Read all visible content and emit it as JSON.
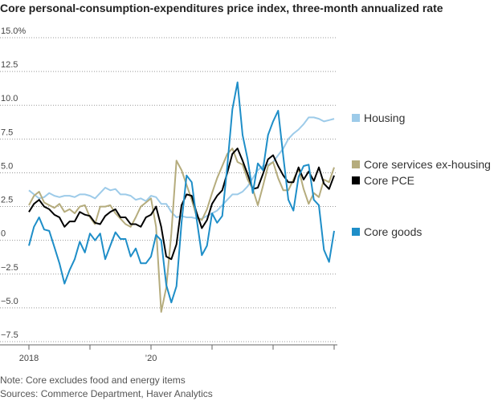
{
  "chart_data": {
    "type": "line",
    "title": "Core personal-consumption-expenditures price index, three-month annualized rate",
    "categories": [
      "2018",
      null,
      null,
      null,
      null,
      null,
      null,
      null,
      null,
      null,
      null,
      null,
      null,
      null,
      null,
      null,
      null,
      null,
      null,
      null,
      null,
      null,
      null,
      null,
      "’20",
      null,
      null,
      null,
      null,
      null,
      null,
      null,
      null,
      null,
      null,
      null,
      null,
      null,
      null,
      null,
      null,
      null,
      null,
      null,
      null,
      null,
      null,
      null,
      null,
      null,
      null,
      null,
      null,
      null,
      null,
      null,
      null,
      null,
      null,
      null,
      null
    ],
    "series": [
      {
        "name": "Housing",
        "color": "#9dcbe9",
        "values": [
          3.7,
          3.4,
          3.1,
          3.2,
          3.5,
          3.3,
          3.2,
          3.3,
          3.3,
          3.2,
          3.4,
          3.4,
          3.3,
          3.1,
          3.5,
          3.9,
          3.7,
          3.8,
          3.4,
          3.4,
          3.3,
          3.0,
          3.1,
          2.9,
          3.3,
          3.2,
          2.7,
          2.7,
          2.1,
          1.7,
          1.8,
          1.7,
          1.7,
          1.6,
          1.6,
          1.8,
          2.0,
          2.2,
          2.6,
          3.0,
          3.4,
          3.4,
          3.6,
          4.0,
          4.6,
          5.2,
          5.5,
          5.6,
          5.8,
          6.3,
          6.8,
          7.5,
          7.9,
          8.2,
          8.6,
          9.1,
          9.1,
          9.0,
          8.8,
          8.9,
          9.0
        ]
      },
      {
        "name": "Core services ex-housing",
        "color": "#b5ac7d",
        "values": [
          2.6,
          3.3,
          3.6,
          2.8,
          2.6,
          2.4,
          2.7,
          2.1,
          2.3,
          2.0,
          2.5,
          2.6,
          1.7,
          1.2,
          2.5,
          2.5,
          2.6,
          2.0,
          1.6,
          1.2,
          1.0,
          1.7,
          2.5,
          2.8,
          3.1,
          1.0,
          -5.3,
          -3.5,
          0.5,
          5.9,
          5.2,
          4.1,
          3.0,
          1.7,
          1.5,
          2.3,
          3.5,
          4.6,
          5.5,
          6.4,
          6.8,
          5.8,
          5.6,
          4.5,
          3.8,
          2.6,
          4.0,
          5.5,
          5.8,
          4.6,
          3.7,
          3.7,
          4.5,
          5.3,
          3.8,
          2.7,
          3.5,
          3.2,
          4.5,
          4.3,
          5.4
        ]
      },
      {
        "name": "Core PCE",
        "color": "#000000",
        "values": [
          2.1,
          2.7,
          3.0,
          2.5,
          2.3,
          1.9,
          1.7,
          1.0,
          1.4,
          1.4,
          2.1,
          1.9,
          1.8,
          1.3,
          1.2,
          1.8,
          2.1,
          2.3,
          1.7,
          1.7,
          1.2,
          1.2,
          1.0,
          1.7,
          1.9,
          2.5,
          1.0,
          -1.2,
          -1.4,
          -0.3,
          2.6,
          3.4,
          3.3,
          2.0,
          0.9,
          1.5,
          2.7,
          3.3,
          3.7,
          5.0,
          6.4,
          6.8,
          5.9,
          4.9,
          3.8,
          3.9,
          4.9,
          6.0,
          6.3,
          5.5,
          4.8,
          4.3,
          4.3,
          5.4,
          4.5,
          5.1,
          4.4,
          5.4,
          4.2,
          3.8,
          4.8
        ]
      },
      {
        "name": "Core goods",
        "color": "#1e8ec8",
        "values": [
          -0.4,
          1.0,
          1.7,
          0.8,
          0.7,
          -0.5,
          -1.7,
          -3.2,
          -2.2,
          -1.4,
          -0.1,
          -0.9,
          0.5,
          0.0,
          0.5,
          -1.4,
          -0.4,
          0.6,
          0.1,
          0.1,
          -1.2,
          -0.6,
          -1.7,
          -1.7,
          -1.2,
          0.4,
          0.0,
          -3.3,
          -4.6,
          -3.4,
          1.3,
          4.8,
          4.3,
          1.5,
          -1.1,
          -0.4,
          2.0,
          1.3,
          1.8,
          5.5,
          9.7,
          11.7,
          7.8,
          6.0,
          3.5,
          5.7,
          5.2,
          7.8,
          8.8,
          9.6,
          6.2,
          3.0,
          2.2,
          4.7,
          5.5,
          5.6,
          3.0,
          2.6,
          -0.7,
          -1.6,
          0.7
        ]
      }
    ],
    "ylim": [
      -7.5,
      15
    ],
    "yticks": [
      {
        "value": -7.5,
        "label": "−7.5"
      },
      {
        "value": -5,
        "label": "−5.0"
      },
      {
        "value": -2.5,
        "label": "−2.5"
      },
      0,
      2.5,
      {
        "value": 5,
        "label": "5.0"
      },
      7.5,
      {
        "value": 10,
        "label": "10.0"
      },
      12.5,
      {
        "value": 15,
        "label": "15.0%"
      }
    ],
    "grid": true,
    "legend": "right",
    "notes": [
      "Note: Core excludes food and energy items",
      "Sources: Commerce Department, Haver Analytics"
    ]
  }
}
